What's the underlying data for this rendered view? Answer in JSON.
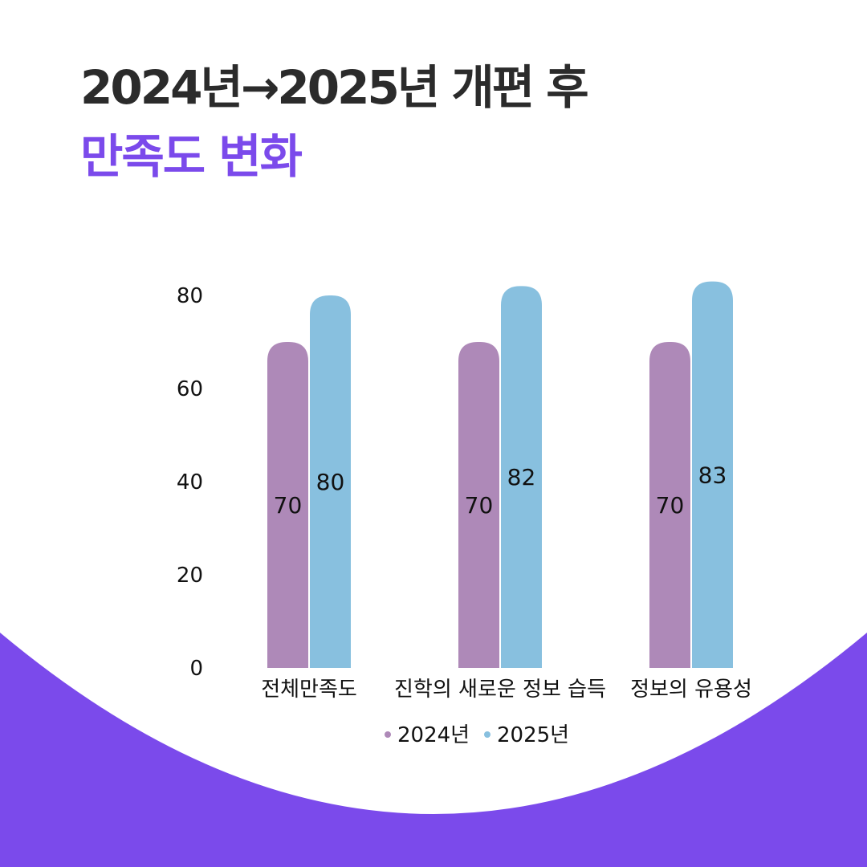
{
  "header": {
    "title": "2024년→2025년 개편 후",
    "subtitle": "만족도 변화"
  },
  "colors": {
    "title": "#2b2b2b",
    "accent": "#7b4aeb",
    "series_2024": "#ae89b8",
    "series_2025": "#88c0df",
    "background": "#ffffff"
  },
  "chart_data": {
    "type": "bar",
    "categories": [
      "전체만족도",
      "진학의 새로운 정보 습득",
      "정보의 유용성"
    ],
    "series": [
      {
        "name": "2024년",
        "values": [
          70,
          70,
          70
        ],
        "color": "#ae89b8"
      },
      {
        "name": "2025년",
        "values": [
          80,
          82,
          83
        ],
        "color": "#88c0df"
      }
    ],
    "yticks": [
      0,
      20,
      40,
      60,
      80
    ],
    "ylim": [
      0,
      80
    ],
    "grid": false,
    "legend": "bottom",
    "title": "",
    "xlabel": "",
    "ylabel": ""
  }
}
